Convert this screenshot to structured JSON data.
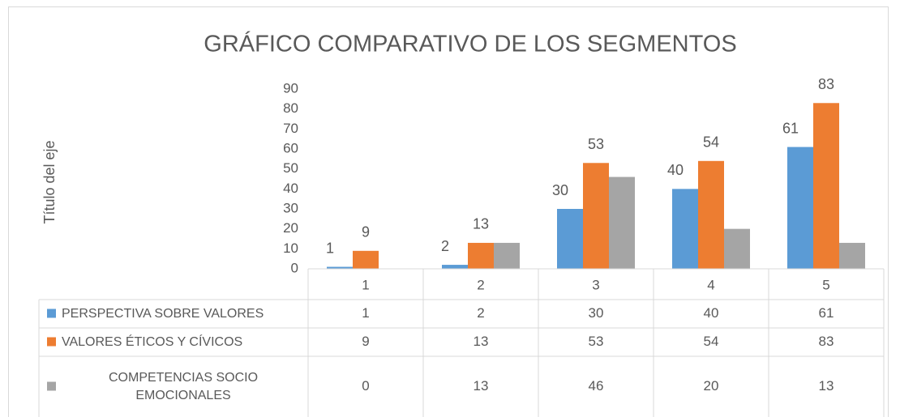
{
  "chart_data": {
    "type": "bar",
    "title": "GRÁFICO COMPARATIVO DE LOS SEGMENTOS",
    "y_label": "Título del eje",
    "categories": [
      "1",
      "2",
      "3",
      "4",
      "5"
    ],
    "series": [
      {
        "name": "PERSPECTIVA SOBRE VALORES",
        "color": "#5b9bd5",
        "values": [
          1,
          2,
          30,
          40,
          61
        ],
        "data_labels": true
      },
      {
        "name": "VALORES ÉTICOS Y CÍVICOS",
        "color": "#ed7d31",
        "values": [
          9,
          13,
          53,
          54,
          83
        ],
        "data_labels": true
      },
      {
        "name": "COMPETENCIAS SOCIO EMOCIONALES",
        "color": "#a5a5a5",
        "values": [
          0,
          13,
          46,
          20,
          13
        ],
        "data_labels": false
      }
    ],
    "ylim": [
      0,
      90
    ],
    "yticks": [
      0,
      10,
      20,
      30,
      40,
      50,
      60,
      70,
      80,
      90
    ],
    "grid": false,
    "data_table": true
  }
}
